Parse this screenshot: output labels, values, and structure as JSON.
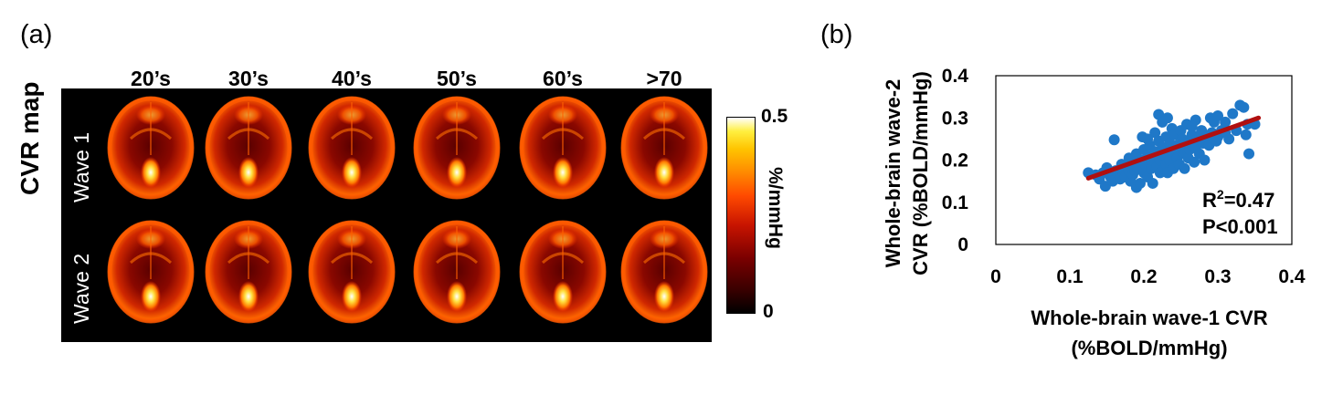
{
  "panel_a": {
    "letter": "(a)",
    "title": "CVR map",
    "age_groups": [
      "20’s",
      "30’s",
      "40’s",
      "50’s",
      "60’s",
      ">70"
    ],
    "rows": [
      "Wave 1",
      "Wave 2"
    ],
    "colorbar": {
      "max_label": "0.5",
      "min_label": "0",
      "unit": "%/mmHg",
      "colors": [
        "#000000",
        "#7a0000",
        "#c81400",
        "#ff4a00",
        "#ff8a00",
        "#ffc400",
        "#ffffff"
      ]
    }
  },
  "panel_b": {
    "letter": "(b)",
    "stats": {
      "r2_base": "R",
      "r2_sup": "2",
      "r2_value": "=0.47",
      "p": "P<0.001"
    },
    "xlabel_line1": "Whole-brain wave-1 CVR",
    "xlabel_line2": "(%BOLD/mmHg)",
    "ylabel_line1": "Whole-brain wave-2",
    "ylabel_line2": "CVR (%BOLD/mmHg)"
  },
  "chart_data": {
    "type": "scatter",
    "xlim": [
      0,
      0.4
    ],
    "ylim": [
      0,
      0.4
    ],
    "x_ticks": [
      "0",
      "0.1",
      "0.2",
      "0.3",
      "0.4"
    ],
    "y_ticks": [
      "0",
      "0.1",
      "0.2",
      "0.3",
      "0.4"
    ],
    "grid": false,
    "point_color": "#1f78c8",
    "fit_color": "#b01010",
    "fit_line": {
      "x": [
        0.125,
        0.355
      ],
      "y": [
        0.157,
        0.3
      ]
    },
    "points": [
      [
        0.125,
        0.17
      ],
      [
        0.135,
        0.165
      ],
      [
        0.14,
        0.155
      ],
      [
        0.145,
        0.17
      ],
      [
        0.148,
        0.138
      ],
      [
        0.15,
        0.182
      ],
      [
        0.155,
        0.16
      ],
      [
        0.158,
        0.15
      ],
      [
        0.16,
        0.248
      ],
      [
        0.162,
        0.175
      ],
      [
        0.165,
        0.168
      ],
      [
        0.168,
        0.155
      ],
      [
        0.17,
        0.19
      ],
      [
        0.172,
        0.17
      ],
      [
        0.175,
        0.16
      ],
      [
        0.178,
        0.185
      ],
      [
        0.18,
        0.175
      ],
      [
        0.182,
        0.15
      ],
      [
        0.185,
        0.195
      ],
      [
        0.185,
        0.165
      ],
      [
        0.188,
        0.175
      ],
      [
        0.19,
        0.135
      ],
      [
        0.19,
        0.215
      ],
      [
        0.192,
        0.18
      ],
      [
        0.195,
        0.2
      ],
      [
        0.195,
        0.145
      ],
      [
        0.198,
        0.255
      ],
      [
        0.2,
        0.17
      ],
      [
        0.2,
        0.225
      ],
      [
        0.202,
        0.19
      ],
      [
        0.205,
        0.21
      ],
      [
        0.205,
        0.16
      ],
      [
        0.208,
        0.235
      ],
      [
        0.21,
        0.18
      ],
      [
        0.21,
        0.2
      ],
      [
        0.212,
        0.145
      ],
      [
        0.215,
        0.265
      ],
      [
        0.215,
        0.22
      ],
      [
        0.218,
        0.185
      ],
      [
        0.22,
        0.308
      ],
      [
        0.22,
        0.245
      ],
      [
        0.222,
        0.2
      ],
      [
        0.222,
        0.17
      ],
      [
        0.225,
        0.23
      ],
      [
        0.225,
        0.29
      ],
      [
        0.228,
        0.21
      ],
      [
        0.23,
        0.19
      ],
      [
        0.23,
        0.255
      ],
      [
        0.232,
        0.17
      ],
      [
        0.235,
        0.24
      ],
      [
        0.235,
        0.2
      ],
      [
        0.238,
        0.275
      ],
      [
        0.24,
        0.22
      ],
      [
        0.24,
        0.18
      ],
      [
        0.242,
        0.26
      ],
      [
        0.245,
        0.205
      ],
      [
        0.245,
        0.235
      ],
      [
        0.248,
        0.19
      ],
      [
        0.25,
        0.27
      ],
      [
        0.25,
        0.225
      ],
      [
        0.252,
        0.25
      ],
      [
        0.255,
        0.215
      ],
      [
        0.255,
        0.18
      ],
      [
        0.258,
        0.285
      ],
      [
        0.26,
        0.24
      ],
      [
        0.26,
        0.205
      ],
      [
        0.262,
        0.225
      ],
      [
        0.265,
        0.26
      ],
      [
        0.268,
        0.195
      ],
      [
        0.27,
        0.295
      ],
      [
        0.27,
        0.23
      ],
      [
        0.272,
        0.25
      ],
      [
        0.275,
        0.215
      ],
      [
        0.278,
        0.27
      ],
      [
        0.28,
        0.24
      ],
      [
        0.282,
        0.2
      ],
      [
        0.285,
        0.255
      ],
      [
        0.288,
        0.235
      ],
      [
        0.29,
        0.3
      ],
      [
        0.292,
        0.265
      ],
      [
        0.295,
        0.29
      ],
      [
        0.298,
        0.245
      ],
      [
        0.3,
        0.305
      ],
      [
        0.305,
        0.27
      ],
      [
        0.31,
        0.29
      ],
      [
        0.315,
        0.25
      ],
      [
        0.32,
        0.31
      ],
      [
        0.325,
        0.27
      ],
      [
        0.33,
        0.33
      ],
      [
        0.335,
        0.325
      ],
      [
        0.338,
        0.26
      ],
      [
        0.34,
        0.285
      ],
      [
        0.342,
        0.215
      ],
      [
        0.35,
        0.285
      ],
      [
        0.232,
        0.3
      ],
      [
        0.205,
        0.25
      ],
      [
        0.18,
        0.205
      ],
      [
        0.265,
        0.28
      ],
      [
        0.3,
        0.255
      ],
      [
        0.31,
        0.265
      ]
    ]
  }
}
